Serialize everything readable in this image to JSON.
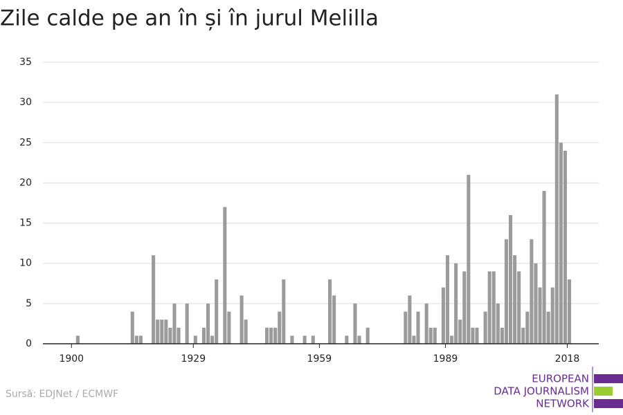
{
  "chart_data": {
    "type": "bar",
    "title": "Zile calde pe an în și în jurul Melilla",
    "source": "Sursă: EDJNet / ECMWF",
    "logo": [
      "EUROPEAN",
      "DATA JOURNALISM",
      "NETWORK"
    ],
    "color": "#9b9b9b",
    "x": [
      1901,
      1914,
      1915,
      1916,
      1919,
      1920,
      1921,
      1922,
      1923,
      1924,
      1925,
      1927,
      1929,
      1931,
      1932,
      1933,
      1934,
      1936,
      1937,
      1940,
      1941,
      1946,
      1947,
      1948,
      1949,
      1950,
      1952,
      1955,
      1957,
      1961,
      1962,
      1965,
      1967,
      1968,
      1970,
      1979,
      1980,
      1981,
      1982,
      1984,
      1985,
      1986,
      1988,
      1989,
      1990,
      1991,
      1992,
      1993,
      1994,
      1995,
      1996,
      1998,
      1999,
      2000,
      2001,
      2002,
      2003,
      2004,
      2005,
      2006,
      2007,
      2008,
      2009,
      2010,
      2011,
      2012,
      2013,
      2014,
      2015,
      2016,
      2017,
      2018
    ],
    "values": [
      1,
      4,
      1,
      1,
      11,
      3,
      3,
      3,
      2,
      5,
      2,
      5,
      1,
      2,
      5,
      1,
      8,
      17,
      4,
      6,
      3,
      2,
      2,
      2,
      4,
      8,
      1,
      1,
      1,
      8,
      6,
      1,
      5,
      1,
      2,
      4,
      6,
      1,
      4,
      5,
      2,
      2,
      7,
      11,
      1,
      10,
      3,
      9,
      21,
      2,
      2,
      4,
      9,
      9,
      5,
      2,
      13,
      16,
      11,
      9,
      2,
      4,
      13,
      10,
      7,
      19,
      4,
      7,
      31,
      25,
      24,
      8
    ],
    "xlim": [
      1893.2,
      2025.5
    ],
    "xticks": [
      1900,
      1929,
      1959,
      1989,
      2018
    ],
    "ylim": [
      0,
      35
    ],
    "yticks": [
      0,
      5,
      10,
      15,
      20,
      25,
      30,
      35
    ],
    "grid": true
  }
}
